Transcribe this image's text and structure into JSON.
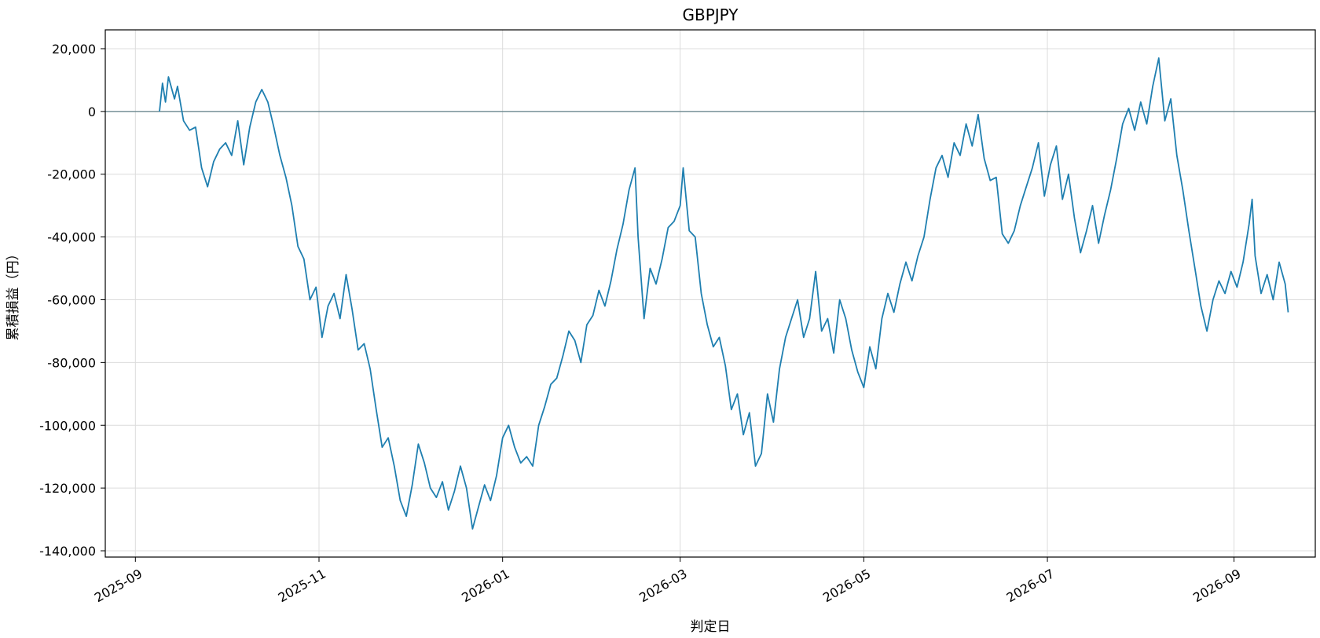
{
  "chart_data": {
    "type": "line",
    "title": "GBPJPY",
    "xlabel": "判定日",
    "ylabel": "累積損益（円）",
    "x_ticks": [
      "2025-09",
      "2025-11",
      "2026-01",
      "2026-03",
      "2026-05",
      "2026-07",
      "2026-09"
    ],
    "y_ticks": [
      "20,000",
      "0",
      "-20,000",
      "-40,000",
      "-60,000",
      "-80,000",
      "-100,000",
      "-120,000",
      "-140,000"
    ],
    "y_tick_values": [
      20000,
      0,
      -20000,
      -40000,
      -60000,
      -80000,
      -100000,
      -120000,
      -140000
    ],
    "xlim": [
      "2025-08-22",
      "2026-09-28"
    ],
    "ylim": [
      -142000,
      26000
    ],
    "grid": true,
    "reference_line": 0,
    "colors": {
      "series": "#1f7fb0",
      "zero_line": "#5f7f86",
      "grid": "#dcdcdc"
    },
    "series": [
      {
        "points": [
          [
            "2025-09-09",
            0
          ],
          [
            "2025-09-10",
            9000
          ],
          [
            "2025-09-11",
            3000
          ],
          [
            "2025-09-12",
            11000
          ],
          [
            "2025-09-14",
            4000
          ],
          [
            "2025-09-15",
            8000
          ],
          [
            "2025-09-17",
            -3000
          ],
          [
            "2025-09-19",
            -6000
          ],
          [
            "2025-09-21",
            -5000
          ],
          [
            "2025-09-23",
            -18000
          ],
          [
            "2025-09-25",
            -24000
          ],
          [
            "2025-09-27",
            -16000
          ],
          [
            "2025-09-29",
            -12000
          ],
          [
            "2025-10-01",
            -10000
          ],
          [
            "2025-10-03",
            -14000
          ],
          [
            "2025-10-05",
            -3000
          ],
          [
            "2025-10-07",
            -17000
          ],
          [
            "2025-10-09",
            -5000
          ],
          [
            "2025-10-11",
            3000
          ],
          [
            "2025-10-13",
            7000
          ],
          [
            "2025-10-15",
            3000
          ],
          [
            "2025-10-17",
            -5000
          ],
          [
            "2025-10-19",
            -14000
          ],
          [
            "2025-10-21",
            -21000
          ],
          [
            "2025-10-23",
            -30000
          ],
          [
            "2025-10-25",
            -43000
          ],
          [
            "2025-10-27",
            -47000
          ],
          [
            "2025-10-29",
            -60000
          ],
          [
            "2025-10-31",
            -56000
          ],
          [
            "2025-11-02",
            -72000
          ],
          [
            "2025-11-04",
            -62000
          ],
          [
            "2025-11-06",
            -58000
          ],
          [
            "2025-11-08",
            -66000
          ],
          [
            "2025-11-10",
            -52000
          ],
          [
            "2025-11-12",
            -63000
          ],
          [
            "2025-11-14",
            -76000
          ],
          [
            "2025-11-16",
            -74000
          ],
          [
            "2025-11-18",
            -82000
          ],
          [
            "2025-11-20",
            -95000
          ],
          [
            "2025-11-22",
            -107000
          ],
          [
            "2025-11-24",
            -104000
          ],
          [
            "2025-11-26",
            -113000
          ],
          [
            "2025-11-28",
            -124000
          ],
          [
            "2025-11-30",
            -129000
          ],
          [
            "2025-12-02",
            -119000
          ],
          [
            "2025-12-04",
            -106000
          ],
          [
            "2025-12-06",
            -112000
          ],
          [
            "2025-12-08",
            -120000
          ],
          [
            "2025-12-10",
            -123000
          ],
          [
            "2025-12-12",
            -118000
          ],
          [
            "2025-12-14",
            -127000
          ],
          [
            "2025-12-16",
            -121000
          ],
          [
            "2025-12-18",
            -113000
          ],
          [
            "2025-12-20",
            -120000
          ],
          [
            "2025-12-22",
            -133000
          ],
          [
            "2025-12-24",
            -126000
          ],
          [
            "2025-12-26",
            -119000
          ],
          [
            "2025-12-28",
            -124000
          ],
          [
            "2025-12-30",
            -116000
          ],
          [
            "2026-01-01",
            -104000
          ],
          [
            "2026-01-03",
            -100000
          ],
          [
            "2026-01-05",
            -107000
          ],
          [
            "2026-01-07",
            -112000
          ],
          [
            "2026-01-09",
            -110000
          ],
          [
            "2026-01-11",
            -113000
          ],
          [
            "2026-01-13",
            -100000
          ],
          [
            "2026-01-15",
            -94000
          ],
          [
            "2026-01-17",
            -87000
          ],
          [
            "2026-01-19",
            -85000
          ],
          [
            "2026-01-21",
            -78000
          ],
          [
            "2026-01-23",
            -70000
          ],
          [
            "2026-01-25",
            -73000
          ],
          [
            "2026-01-27",
            -80000
          ],
          [
            "2026-01-29",
            -68000
          ],
          [
            "2026-01-31",
            -65000
          ],
          [
            "2026-02-02",
            -57000
          ],
          [
            "2026-02-04",
            -62000
          ],
          [
            "2026-02-06",
            -54000
          ],
          [
            "2026-02-08",
            -44000
          ],
          [
            "2026-02-10",
            -36000
          ],
          [
            "2026-02-12",
            -25000
          ],
          [
            "2026-02-14",
            -18000
          ],
          [
            "2026-02-15",
            -40000
          ],
          [
            "2026-02-17",
            -66000
          ],
          [
            "2026-02-19",
            -50000
          ],
          [
            "2026-02-21",
            -55000
          ],
          [
            "2026-02-23",
            -47000
          ],
          [
            "2026-02-25",
            -37000
          ],
          [
            "2026-02-27",
            -35000
          ],
          [
            "2026-03-01",
            -30000
          ],
          [
            "2026-03-02",
            -18000
          ],
          [
            "2026-03-04",
            -38000
          ],
          [
            "2026-03-06",
            -40000
          ],
          [
            "2026-03-08",
            -58000
          ],
          [
            "2026-03-10",
            -68000
          ],
          [
            "2026-03-12",
            -75000
          ],
          [
            "2026-03-14",
            -72000
          ],
          [
            "2026-03-16",
            -81000
          ],
          [
            "2026-03-18",
            -95000
          ],
          [
            "2026-03-20",
            -90000
          ],
          [
            "2026-03-22",
            -103000
          ],
          [
            "2026-03-24",
            -96000
          ],
          [
            "2026-03-26",
            -113000
          ],
          [
            "2026-03-28",
            -109000
          ],
          [
            "2026-03-30",
            -90000
          ],
          [
            "2026-04-01",
            -99000
          ],
          [
            "2026-04-03",
            -82000
          ],
          [
            "2026-04-05",
            -72000
          ],
          [
            "2026-04-07",
            -66000
          ],
          [
            "2026-04-09",
            -60000
          ],
          [
            "2026-04-11",
            -72000
          ],
          [
            "2026-04-13",
            -66000
          ],
          [
            "2026-04-15",
            -51000
          ],
          [
            "2026-04-17",
            -70000
          ],
          [
            "2026-04-19",
            -66000
          ],
          [
            "2026-04-21",
            -77000
          ],
          [
            "2026-04-23",
            -60000
          ],
          [
            "2026-04-25",
            -66000
          ],
          [
            "2026-04-27",
            -76000
          ],
          [
            "2026-04-29",
            -83000
          ],
          [
            "2026-05-01",
            -88000
          ],
          [
            "2026-05-03",
            -75000
          ],
          [
            "2026-05-05",
            -82000
          ],
          [
            "2026-05-07",
            -66000
          ],
          [
            "2026-05-09",
            -58000
          ],
          [
            "2026-05-11",
            -64000
          ],
          [
            "2026-05-13",
            -55000
          ],
          [
            "2026-05-15",
            -48000
          ],
          [
            "2026-05-17",
            -54000
          ],
          [
            "2026-05-19",
            -46000
          ],
          [
            "2026-05-21",
            -40000
          ],
          [
            "2026-05-23",
            -28000
          ],
          [
            "2026-05-25",
            -18000
          ],
          [
            "2026-05-27",
            -14000
          ],
          [
            "2026-05-29",
            -21000
          ],
          [
            "2026-05-31",
            -10000
          ],
          [
            "2026-06-02",
            -14000
          ],
          [
            "2026-06-04",
            -4000
          ],
          [
            "2026-06-06",
            -11000
          ],
          [
            "2026-06-08",
            -1000
          ],
          [
            "2026-06-10",
            -15000
          ],
          [
            "2026-06-12",
            -22000
          ],
          [
            "2026-06-14",
            -21000
          ],
          [
            "2026-06-16",
            -39000
          ],
          [
            "2026-06-18",
            -42000
          ],
          [
            "2026-06-20",
            -38000
          ],
          [
            "2026-06-22",
            -30000
          ],
          [
            "2026-06-24",
            -24000
          ],
          [
            "2026-06-26",
            -18000
          ],
          [
            "2026-06-28",
            -10000
          ],
          [
            "2026-06-30",
            -27000
          ],
          [
            "2026-07-02",
            -17000
          ],
          [
            "2026-07-04",
            -11000
          ],
          [
            "2026-07-06",
            -28000
          ],
          [
            "2026-07-08",
            -20000
          ],
          [
            "2026-07-10",
            -34000
          ],
          [
            "2026-07-12",
            -45000
          ],
          [
            "2026-07-14",
            -38000
          ],
          [
            "2026-07-16",
            -30000
          ],
          [
            "2026-07-18",
            -42000
          ],
          [
            "2026-07-20",
            -33000
          ],
          [
            "2026-07-22",
            -25000
          ],
          [
            "2026-07-24",
            -15000
          ],
          [
            "2026-07-26",
            -4000
          ],
          [
            "2026-07-28",
            1000
          ],
          [
            "2026-07-30",
            -6000
          ],
          [
            "2026-08-01",
            3000
          ],
          [
            "2026-08-03",
            -4000
          ],
          [
            "2026-08-05",
            8000
          ],
          [
            "2026-08-07",
            17000
          ],
          [
            "2026-08-09",
            -3000
          ],
          [
            "2026-08-11",
            4000
          ],
          [
            "2026-08-13",
            -14000
          ],
          [
            "2026-08-15",
            -25000
          ],
          [
            "2026-08-17",
            -38000
          ],
          [
            "2026-08-19",
            -50000
          ],
          [
            "2026-08-21",
            -62000
          ],
          [
            "2026-08-23",
            -70000
          ],
          [
            "2026-08-25",
            -60000
          ],
          [
            "2026-08-27",
            -54000
          ],
          [
            "2026-08-29",
            -58000
          ],
          [
            "2026-08-31",
            -51000
          ],
          [
            "2026-09-02",
            -56000
          ],
          [
            "2026-09-04",
            -48000
          ],
          [
            "2026-09-06",
            -36000
          ],
          [
            "2026-09-07",
            -28000
          ],
          [
            "2026-09-08",
            -46000
          ],
          [
            "2026-09-10",
            -58000
          ],
          [
            "2026-09-12",
            -52000
          ],
          [
            "2026-09-14",
            -60000
          ],
          [
            "2026-09-16",
            -48000
          ],
          [
            "2026-09-18",
            -55000
          ],
          [
            "2026-09-19",
            -64000
          ]
        ]
      }
    ]
  }
}
